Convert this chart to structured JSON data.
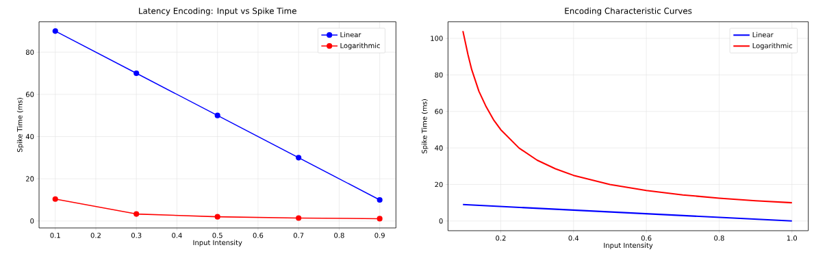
{
  "chart_data": [
    {
      "type": "line",
      "title": "Latency Encoding: Input vs Spike Time",
      "xlabel": "Input Intensity",
      "ylabel": "Spike Time (ms)",
      "series": [
        {
          "name": "Linear",
          "color": "#0000ff",
          "x": [
            0.1,
            0.3,
            0.5,
            0.7,
            0.9
          ],
          "values": [
            90,
            70,
            50,
            30,
            10
          ]
        },
        {
          "name": "Logarithmic",
          "color": "#ff0000",
          "x": [
            0.1,
            0.3,
            0.5,
            0.7,
            0.9
          ],
          "values": [
            10.4,
            3.3,
            2.0,
            1.4,
            1.1
          ]
        }
      ],
      "xlim": [
        0.06,
        0.94
      ],
      "ylim": [
        -3.3,
        94.4
      ],
      "xticks": [
        0.1,
        0.2,
        0.3,
        0.4,
        0.5,
        0.6,
        0.7,
        0.8,
        0.9
      ],
      "yticks": [
        0,
        20,
        40,
        60,
        80
      ],
      "grid": true,
      "legend": "top right",
      "marker": "circle"
    },
    {
      "type": "line",
      "title": "Encoding Characteristic Curves",
      "xlabel": "Input Intensity",
      "ylabel": "Spike Time (ms)",
      "series": [
        {
          "name": "Linear",
          "color": "#0000ff",
          "x": [
            0.096,
            1.0
          ],
          "values": [
            9.0,
            0
          ]
        },
        {
          "name": "Logarithmic",
          "color": "#ff0000",
          "x": [
            0.096,
            0.11,
            0.12,
            0.14,
            0.16,
            0.18,
            0.2,
            0.25,
            0.3,
            0.35,
            0.4,
            0.5,
            0.6,
            0.7,
            0.8,
            0.9,
            1.0
          ],
          "values": [
            104,
            91,
            83,
            71,
            62.5,
            55.5,
            50,
            40,
            33.3,
            28.6,
            25,
            20,
            16.7,
            14.3,
            12.5,
            11.1,
            10
          ]
        }
      ],
      "xlim": [
        0.055,
        1.045
      ],
      "ylim": [
        -5.3,
        109.1
      ],
      "xticks": [
        0.2,
        0.4,
        0.6,
        0.8,
        {
          "value": 1.0,
          "label": "1.0"
        }
      ],
      "yticks": [
        0,
        20,
        40,
        60,
        80,
        100
      ],
      "grid": true,
      "legend": "top right",
      "marker": "none"
    }
  ]
}
